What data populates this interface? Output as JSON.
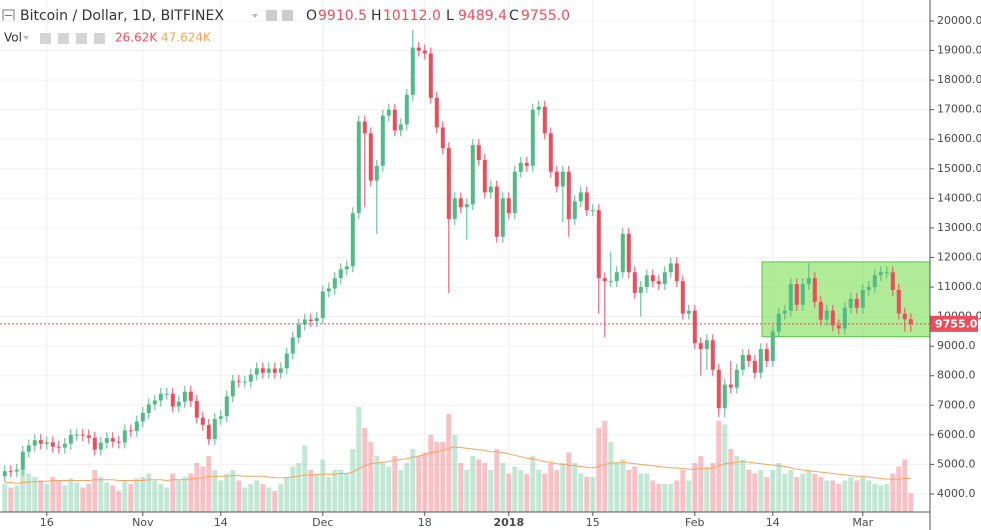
{
  "chart_data": {
    "type": "candlestick",
    "title": "Bitcoin / Dollar, 1D, BITFINEX",
    "header": [
      {
        "label": "O",
        "value": "9910.5"
      },
      {
        "label": "H",
        "value": "10112.0"
      },
      {
        "label": "L",
        "value": "9489.4"
      },
      {
        "label": "C",
        "value": "9755.0"
      }
    ],
    "volume_label": "Vol",
    "volume_value": "26.62K",
    "volume_ma_value": "47.624K",
    "up_color": "#53b987",
    "down_color": "#eb4d5c",
    "ma_color": "#f7a35c",
    "open": [
      4600,
      4770,
      4760,
      4820,
      5430,
      5640,
      5820,
      5700,
      5750,
      5600,
      5570,
      5700,
      6000,
      6010,
      5980,
      5900,
      5500,
      5730,
      5890,
      5770,
      5740,
      6150,
      6130,
      6450,
      6740,
      7030,
      7160,
      7390,
      7390,
      6960,
      7120,
      7460,
      7150,
      6580,
      6340,
      5860,
      6540,
      6630,
      7300,
      7830,
      7800,
      7800,
      8040,
      8250,
      8100,
      8240,
      8100,
      8250,
      8750,
      9290,
      9730,
      9900,
      9850,
      9950,
      10850,
      10950,
      11300,
      11600,
      11700,
      13500,
      16600,
      16200,
      14600,
      15100,
      16800,
      17000,
      16300,
      16500,
      17500,
      19100,
      19000,
      18900,
      17400,
      16400,
      15700,
      13300,
      14000,
      13700,
      13800,
      15800,
      15300,
      14200,
      14400,
      12700,
      14000,
      13500,
      14900,
      15200,
      15100,
      17000,
      17100,
      16200,
      14900,
      14400,
      14900,
      13300,
      13900,
      14200,
      13600,
      13600,
      11300,
      11200,
      11200,
      11500,
      12800,
      11500,
      10800,
      11000,
      11400,
      11200,
      11100,
      11500,
      11800,
      11200,
      10100,
      10200,
      9100,
      8900,
      9200,
      8200,
      6900,
      7700,
      7600,
      8200,
      8700,
      8500,
      8100,
      8900,
      8500,
      9500,
      10100,
      10200,
      11100,
      10400,
      11100,
      11300,
      10500,
      9900,
      10200,
      9700,
      9600,
      10300,
      10600,
      10300,
      10900,
      11000,
      11400,
      11500,
      11500,
      10900,
      10100,
      9910.5
    ],
    "high": [
      4970,
      4970,
      5020,
      5630,
      5840,
      6020,
      6020,
      5950,
      5950,
      5800,
      5900,
      6200,
      6210,
      6210,
      6180,
      6100,
      5930,
      6090,
      6090,
      5970,
      6350,
      6350,
      6650,
      6940,
      7230,
      7360,
      7590,
      7590,
      7590,
      7320,
      7660,
      7660,
      7350,
      6780,
      6540,
      6740,
      6830,
      7500,
      8030,
      8030,
      8000,
      8240,
      8450,
      8450,
      8440,
      8440,
      8450,
      8950,
      9490,
      9930,
      10100,
      10100,
      10150,
      11050,
      11150,
      11500,
      11800,
      11900,
      13700,
      16800,
      16800,
      16400,
      15300,
      17000,
      17200,
      17200,
      16700,
      17700,
      19700,
      19300,
      19200,
      19100,
      17600,
      16600,
      15900,
      14200,
      14200,
      14000,
      16000,
      16000,
      15500,
      14600,
      14600,
      14200,
      14200,
      15100,
      15400,
      15400,
      17200,
      17300,
      17300,
      16400,
      15100,
      15100,
      15100,
      14100,
      14400,
      14400,
      13800,
      13800,
      11500,
      12200,
      11700,
      13000,
      13000,
      11700,
      11200,
      11600,
      11600,
      11400,
      11700,
      12000,
      12000,
      11400,
      10400,
      10400,
      9300,
      9400,
      9400,
      8400,
      7900,
      8500,
      8400,
      8900,
      8900,
      8700,
      9100,
      9100,
      9700,
      10300,
      10400,
      11300,
      11300,
      11300,
      11800,
      11500,
      10700,
      10400,
      10400,
      9900,
      10500,
      10800,
      10800,
      11100,
      11200,
      11600,
      11700,
      11700,
      11700,
      11100,
      10300,
      10112
    ],
    "low": [
      4400,
      4560,
      4560,
      4620,
      5230,
      5440,
      5500,
      5500,
      5400,
      5370,
      5370,
      5500,
      5800,
      5780,
      5700,
      5300,
      5300,
      5530,
      5570,
      5540,
      5540,
      5930,
      5930,
      6250,
      6540,
      6830,
      6960,
      7190,
      6760,
      6760,
      6920,
      6950,
      6380,
      6140,
      5660,
      5660,
      6340,
      6430,
      7100,
      7600,
      7600,
      7600,
      7840,
      7900,
      7900,
      7900,
      7900,
      8050,
      8550,
      9090,
      9530,
      9650,
      9650,
      9750,
      10650,
      10750,
      11100,
      11400,
      11500,
      13300,
      13700,
      14400,
      12800,
      14900,
      16600,
      16100,
      16100,
      16300,
      17300,
      18800,
      18700,
      17200,
      16200,
      15500,
      10800,
      13100,
      13500,
      12600,
      13600,
      15100,
      14000,
      14000,
      12500,
      12500,
      13300,
      13300,
      14700,
      14900,
      14900,
      16800,
      16000,
      14700,
      14200,
      13200,
      12700,
      13100,
      13700,
      13400,
      13400,
      10100,
      9300,
      11000,
      11000,
      11300,
      11300,
      10600,
      10000,
      10800,
      11000,
      10900,
      10900,
      11300,
      11000,
      9900,
      9900,
      8900,
      8000,
      8200,
      8000,
      6600,
      6600,
      7400,
      7400,
      8000,
      8300,
      7900,
      7900,
      8300,
      8300,
      9300,
      9900,
      10000,
      10200,
      10200,
      10900,
      10300,
      9700,
      9700,
      9500,
      9400,
      9400,
      10100,
      10100,
      10100,
      10700,
      10800,
      11200,
      11300,
      10700,
      9900,
      9500,
      9489.4
    ],
    "close": [
      4770,
      4760,
      4820,
      5430,
      5640,
      5820,
      5700,
      5750,
      5600,
      5570,
      5700,
      6000,
      6010,
      5980,
      5900,
      5500,
      5730,
      5890,
      5770,
      5740,
      6150,
      6130,
      6450,
      6740,
      7030,
      7160,
      7390,
      7390,
      6960,
      7120,
      7460,
      7150,
      6580,
      6340,
      5860,
      6540,
      6630,
      7300,
      7830,
      7800,
      7800,
      8040,
      8250,
      8100,
      8240,
      8100,
      8250,
      8750,
      9290,
      9730,
      9900,
      9850,
      9950,
      10850,
      10950,
      11300,
      11600,
      11700,
      13500,
      16600,
      16200,
      14600,
      15100,
      16800,
      17000,
      16300,
      16500,
      17500,
      19100,
      19000,
      18900,
      17400,
      16400,
      15700,
      13300,
      14000,
      13700,
      13800,
      15800,
      15300,
      14200,
      14400,
      12700,
      14000,
      13500,
      14900,
      15200,
      15100,
      17000,
      17100,
      16200,
      14900,
      14400,
      14900,
      13300,
      13900,
      14200,
      13600,
      13600,
      11300,
      11200,
      11200,
      11500,
      12800,
      11500,
      10800,
      11000,
      11400,
      11200,
      11100,
      11500,
      11800,
      11200,
      10100,
      10200,
      9100,
      8900,
      9200,
      8200,
      6900,
      7700,
      7600,
      8200,
      8700,
      8500,
      8100,
      8900,
      8500,
      9500,
      10100,
      10200,
      11100,
      10400,
      11100,
      11300,
      10500,
      9900,
      10200,
      9700,
      9600,
      10300,
      10600,
      10300,
      10900,
      11000,
      11400,
      11500,
      11500,
      10900,
      10100,
      9910.5,
      9755
    ],
    "volume": [
      40,
      35,
      38,
      60,
      55,
      50,
      45,
      40,
      50,
      45,
      38,
      48,
      42,
      35,
      40,
      60,
      50,
      42,
      38,
      30,
      45,
      40,
      48,
      50,
      55,
      45,
      40,
      35,
      55,
      45,
      50,
      55,
      70,
      65,
      80,
      60,
      45,
      55,
      60,
      45,
      35,
      40,
      45,
      40,
      35,
      30,
      40,
      50,
      65,
      70,
      95,
      60,
      55,
      75,
      50,
      60,
      60,
      55,
      90,
      150,
      120,
      100,
      80,
      70,
      65,
      80,
      60,
      70,
      90,
      80,
      85,
      110,
      100,
      100,
      140,
      110,
      70,
      60,
      80,
      75,
      70,
      60,
      90,
      70,
      55,
      65,
      60,
      55,
      80,
      60,
      55,
      70,
      60,
      70,
      85,
      70,
      55,
      50,
      50,
      120,
      130,
      100,
      70,
      75,
      60,
      65,
      55,
      55,
      45,
      40,
      40,
      40,
      45,
      60,
      45,
      70,
      80,
      65,
      70,
      130,
      125,
      90,
      80,
      75,
      60,
      55,
      60,
      50,
      60,
      70,
      55,
      60,
      50,
      55,
      60,
      55,
      50,
      45,
      45,
      40,
      45,
      50,
      45,
      50,
      45,
      40,
      38,
      40,
      55,
      65,
      75,
      26.62
    ],
    "volume_ma": [
      42,
      42,
      41,
      42,
      43,
      43,
      44,
      44,
      45,
      45,
      45,
      45,
      45,
      45,
      45,
      46,
      46,
      46,
      46,
      45,
      45,
      45,
      45,
      45,
      46,
      46,
      46,
      45,
      46,
      46,
      46,
      47,
      48,
      49,
      51,
      51,
      51,
      51,
      52,
      52,
      51,
      51,
      51,
      51,
      50,
      49,
      49,
      49,
      50,
      51,
      53,
      53,
      53,
      54,
      54,
      54,
      55,
      55,
      57,
      62,
      66,
      69,
      70,
      71,
      72,
      74,
      75,
      76,
      78,
      80,
      82,
      85,
      86,
      88,
      91,
      93,
      92,
      91,
      90,
      89,
      88,
      86,
      86,
      85,
      83,
      81,
      79,
      77,
      76,
      74,
      72,
      71,
      69,
      68,
      67,
      66,
      65,
      64,
      63,
      65,
      68,
      70,
      70,
      71,
      70,
      69,
      68,
      67,
      66,
      65,
      64,
      63,
      63,
      62,
      61,
      61,
      62,
      62,
      63,
      66,
      69,
      70,
      71,
      72,
      71,
      70,
      69,
      68,
      67,
      66,
      65,
      63,
      61,
      60,
      59,
      58,
      57,
      56,
      55,
      54,
      53,
      52,
      51,
      51,
      50,
      49,
      48,
      47,
      47,
      47,
      48,
      47.624
    ],
    "xlim": [
      -0.8,
      154.2
    ],
    "ylim": [
      3390,
      20710
    ],
    "vlim": [
      0,
      731
    ],
    "xticks": [
      {
        "value": 7,
        "label": "16"
      },
      {
        "value": 23,
        "label": "Nov"
      },
      {
        "value": 36,
        "label": "14"
      },
      {
        "value": 53,
        "label": "Dec"
      },
      {
        "value": 70,
        "label": "18"
      },
      {
        "value": 84,
        "label": "2018"
      },
      {
        "value": 98,
        "label": "15"
      },
      {
        "value": 115,
        "label": "Feb"
      },
      {
        "value": 128,
        "label": "14"
      },
      {
        "value": 143,
        "label": "Mar"
      }
    ],
    "yticks": [
      {
        "value": 4000,
        "label": "4000.0"
      },
      {
        "value": 5000,
        "label": "5000.0"
      },
      {
        "value": 6000,
        "label": "6000.0"
      },
      {
        "value": 7000,
        "label": "7000.0"
      },
      {
        "value": 8000,
        "label": "8000.0"
      },
      {
        "value": 9000,
        "label": "9000.0"
      },
      {
        "value": 10000,
        "label": "10000.0"
      },
      {
        "value": 11000,
        "label": "11000.0"
      },
      {
        "value": 12000,
        "label": "12000.0"
      },
      {
        "value": 13000,
        "label": "13000.0"
      },
      {
        "value": 14000,
        "label": "14000.0"
      },
      {
        "value": 15000,
        "label": "15000.0"
      },
      {
        "value": 16000,
        "label": "16000.0"
      },
      {
        "value": 17000,
        "label": "17000.0"
      },
      {
        "value": 18000,
        "label": "18000.0"
      },
      {
        "value": 19000,
        "label": "19000.0"
      },
      {
        "value": 20000,
        "label": "20000.0"
      }
    ],
    "last_price": {
      "value": 9755,
      "label": "9755.0"
    },
    "highlight_box": {
      "x": [
        126.2,
        154.2
      ],
      "y": [
        9320,
        11850
      ],
      "color": "#8fe36b"
    },
    "grid": true
  }
}
